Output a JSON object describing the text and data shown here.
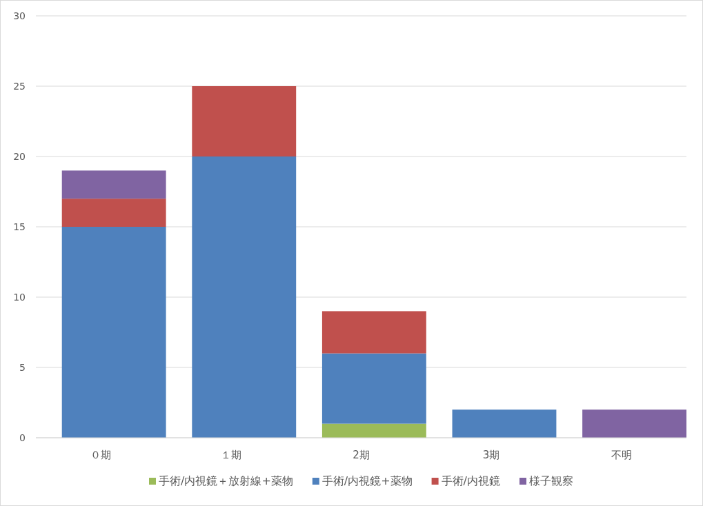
{
  "chart_data": {
    "type": "bar",
    "stacked": true,
    "categories": [
      "０期",
      "１期",
      "2期",
      "3期",
      "不明"
    ],
    "series": [
      {
        "name": "手術/内視鏡＋放射線+薬物",
        "color": "#9bbb59",
        "values": [
          0,
          0,
          1,
          0,
          0
        ]
      },
      {
        "name": "手術/内視鏡+薬物",
        "color": "#4f81bd",
        "values": [
          15,
          20,
          5,
          2,
          0
        ]
      },
      {
        "name": "手術/内視鏡",
        "color": "#c0504d",
        "values": [
          2,
          5,
          3,
          0,
          0
        ]
      },
      {
        "name": "様子観察",
        "color": "#8064a2",
        "values": [
          2,
          0,
          0,
          0,
          2
        ]
      }
    ],
    "ylim": [
      0,
      30
    ],
    "yticks": [
      0,
      5,
      10,
      15,
      20,
      25,
      30
    ],
    "grid": "y",
    "legend": "bottom"
  }
}
